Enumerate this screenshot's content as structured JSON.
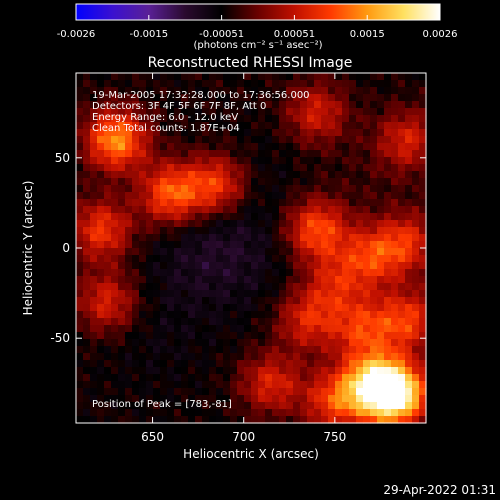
{
  "colorbar": {
    "tick_labels": [
      "-0.0026",
      "-0.0015",
      "-0.00051",
      "0.00051",
      "0.0015",
      "0.0026"
    ],
    "range": [
      -0.0026,
      0.0026
    ],
    "colors": [
      "#0000ff",
      "#3a10d0",
      "#5a2096",
      "#2a0a2e",
      "#000000",
      "#6a0000",
      "#c01000",
      "#ff3a00",
      "#ff9a10",
      "#ffe060",
      "#ffffff"
    ]
  },
  "chart_data": {
    "type": "heatmap",
    "title": "Reconstructed RHESSI Image",
    "xlabel": "Heliocentric X (arcsec)",
    "ylabel": "Heliocentric Y (arcsec)",
    "xlim": [
      608,
      800
    ],
    "ylim": [
      -97,
      97
    ],
    "x_ticks": [
      650,
      700,
      750
    ],
    "y_ticks": [
      50,
      0,
      -50
    ],
    "colorbar_unit": "(photons cm⁻² s⁻¹ asec⁻²)",
    "annotations": [
      "19-Mar-2005 17:32:28.000 to 17:36:56.000",
      "Detectors: 3F 4F 5F 6F 7F 8F, Att 0",
      "Energy Range: 6.0 - 12.0 keV",
      "Clean     Total counts: 1.87E+04"
    ],
    "peak_label": "Position of Peak = [783,-81]",
    "peak": [
      783,
      -81
    ],
    "bright_regions": [
      {
        "x": 630,
        "y": 60,
        "value": 0.0015
      },
      {
        "x": 660,
        "y": 30,
        "value": 0.0012
      },
      {
        "x": 685,
        "y": 35,
        "value": 0.001
      },
      {
        "x": 622,
        "y": 10,
        "value": 0.0009
      },
      {
        "x": 625,
        "y": -30,
        "value": 0.0007
      },
      {
        "x": 740,
        "y": 10,
        "value": 0.0011
      },
      {
        "x": 770,
        "y": -5,
        "value": 0.0008
      },
      {
        "x": 790,
        "y": 3,
        "value": 0.0007
      },
      {
        "x": 735,
        "y": -40,
        "value": 0.0007
      },
      {
        "x": 765,
        "y": -45,
        "value": 0.0008
      },
      {
        "x": 790,
        "y": -40,
        "value": 0.0009
      },
      {
        "x": 783,
        "y": -81,
        "value": 0.0026
      },
      {
        "x": 770,
        "y": -75,
        "value": 0.0014
      },
      {
        "x": 750,
        "y": -85,
        "value": 0.0009
      },
      {
        "x": 715,
        "y": -75,
        "value": 0.0007
      },
      {
        "x": 740,
        "y": 75,
        "value": 0.0006
      },
      {
        "x": 790,
        "y": 60,
        "value": 0.0006
      },
      {
        "x": 750,
        "y": -20,
        "value": 0.0005
      }
    ],
    "dark_regions": [
      {
        "x": 690,
        "y": 0,
        "value": -0.0008
      },
      {
        "x": 700,
        "y": 40,
        "value": -0.0006
      },
      {
        "x": 650,
        "y": -50,
        "value": -0.0006
      },
      {
        "x": 720,
        "y": -20,
        "value": -0.0005
      },
      {
        "x": 670,
        "y": -10,
        "value": -0.0006
      },
      {
        "x": 690,
        "y": 80,
        "value": -0.0004
      },
      {
        "x": 770,
        "y": 40,
        "value": -0.0003
      }
    ]
  },
  "timestamp": "29-Apr-2022 01:31"
}
